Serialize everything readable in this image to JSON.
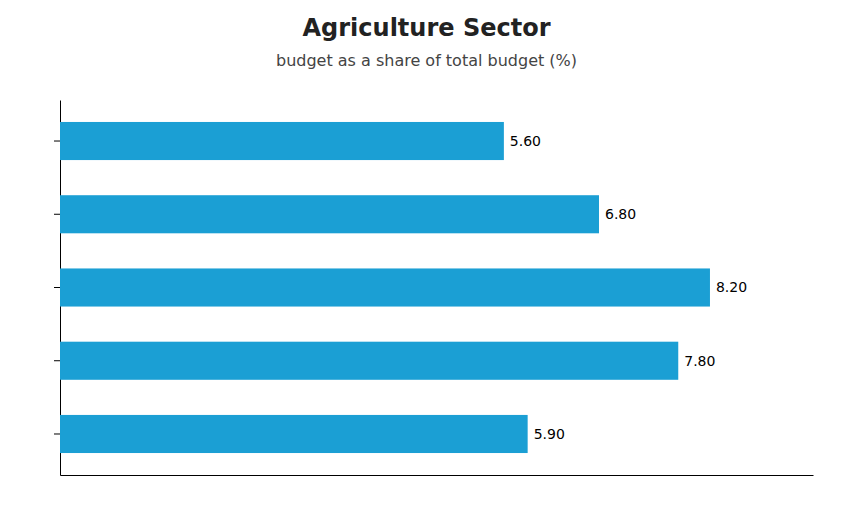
{
  "chart_data": {
    "type": "bar",
    "orientation": "horizontal",
    "title": "Agriculture Sector",
    "subtitle": "budget as a share of total budget (%)",
    "categories": [
      null,
      null,
      null,
      null,
      null
    ],
    "values": [
      5.6,
      6.8,
      8.2,
      7.8,
      5.9
    ],
    "value_labels": [
      "5.60",
      "6.80",
      "8.20",
      "7.80",
      "5.90"
    ],
    "color": "#1B9FD4",
    "xlim": [
      0,
      9.5
    ],
    "xticks": [],
    "data_labels": true,
    "tick_labels": false,
    "grid": false
  }
}
